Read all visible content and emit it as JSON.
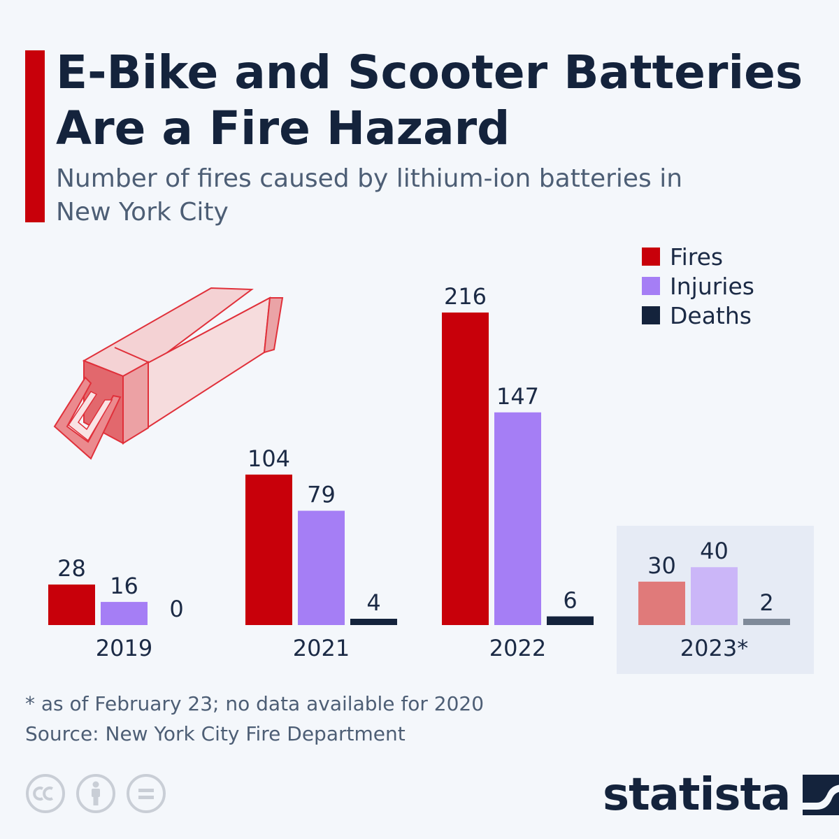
{
  "header": {
    "title": "E-Bike and Scooter Batteries Are a Fire Hazard",
    "subtitle": "Number of fires caused by lithium-ion batteries in New York City"
  },
  "colors": {
    "accent": "#c8000a",
    "fires": "#c8000a",
    "injuries": "#a57ef5",
    "deaths": "#14233c",
    "fires_partial": "#e07a7a",
    "injuries_partial": "#cbb6f8",
    "deaths_partial": "#7f8a99",
    "highlight_panel": "#e6ebf5"
  },
  "legend": {
    "items": [
      {
        "label": "Fires",
        "color": "#c8000a"
      },
      {
        "label": "Injuries",
        "color": "#a57ef5"
      },
      {
        "label": "Deaths",
        "color": "#14233c"
      }
    ]
  },
  "chart_data": {
    "type": "bar",
    "title": "E-Bike and Scooter Batteries Are a Fire Hazard",
    "subtitle": "Number of fires caused by lithium-ion batteries in New York City",
    "categories": [
      "2019",
      "2021",
      "2022",
      "2023*"
    ],
    "series": [
      {
        "name": "Fires",
        "values": [
          28,
          104,
          216,
          30
        ]
      },
      {
        "name": "Injuries",
        "values": [
          16,
          79,
          147,
          40
        ]
      },
      {
        "name": "Deaths",
        "values": [
          0,
          4,
          6,
          2
        ]
      }
    ],
    "xlabel": "",
    "ylabel": "",
    "ylim": [
      0,
      216
    ],
    "grid": false,
    "legend": "top-right",
    "highlighted_category": "2023*"
  },
  "footer": {
    "footnote": "* as of February 23; no data available for 2020",
    "source": "Source: New York City Fire Department",
    "brand": "statista",
    "license_icons": [
      "cc-icon",
      "attribution-icon",
      "no-derivatives-icon"
    ]
  }
}
